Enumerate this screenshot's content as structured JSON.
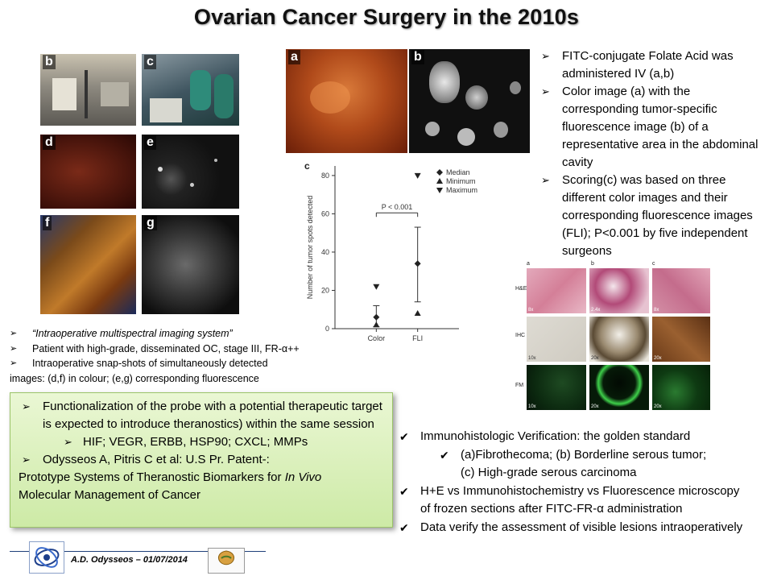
{
  "slide": {
    "title": "Ovarian Cancer Surgery in the 2010s"
  },
  "left_panel": {
    "labels": [
      "b",
      "c",
      "d",
      "e",
      "f",
      "g"
    ]
  },
  "top_images": {
    "labels": [
      "a",
      "b"
    ]
  },
  "chart_data": {
    "type": "scatter",
    "panel_label": "c",
    "categories": [
      "Color",
      "FLI"
    ],
    "ylabel": "Number of tumor spots detected",
    "ylim": [
      0,
      85
    ],
    "yticks": [
      0,
      20,
      40,
      60,
      80
    ],
    "annotation": "P < 0.001",
    "legend": [
      {
        "symbol": "diamond",
        "label": "Median"
      },
      {
        "symbol": "triangle-up",
        "label": "Minimum"
      },
      {
        "symbol": "triangle-down",
        "label": "Maximum"
      }
    ],
    "series": [
      {
        "name": "Median",
        "values": [
          6,
          34
        ]
      },
      {
        "name": "Minimum",
        "values": [
          2,
          8
        ]
      },
      {
        "name": "Maximum",
        "values": [
          22,
          80
        ]
      }
    ],
    "error_bars": [
      [
        1,
        12
      ],
      [
        14,
        53
      ]
    ]
  },
  "right_bullets": [
    "FITC-conjugate Folate Acid was administered IV (a,b)",
    "Color image (a) with the corresponding tumor-specific fluorescence image (b) of a representative area in the abdominal cavity",
    "Scoring(c) was based on three different color images and their corresponding fluorescence images (FLI); P<0.001 by five independent surgeons"
  ],
  "histology": {
    "col_labels": [
      "a",
      "b",
      "c"
    ],
    "row_labels": [
      "H&E",
      "IHC",
      "FM"
    ],
    "magnifications": [
      [
        "8x",
        "2.4x",
        "8x"
      ],
      [
        "10x",
        "20x",
        "20x"
      ],
      [
        "10x",
        "20x",
        "20x"
      ]
    ],
    "colors": {
      "he": "#d98fa6",
      "ihc_neg": "#d9d6cf",
      "ihc_pos": "#7a4a24",
      "fm": "#0d2a10"
    }
  },
  "left_bullets": [
    "“Intraoperative multispectral imaging system”",
    "Patient with high-grade, disseminated OC, stage III, FR-α++",
    "Intraoperative snap-shots of simultaneously detected"
  ],
  "left_bullets_continuation": "images: (d,f) in colour; (e,g) corresponding fluorescence",
  "green_box": {
    "item1": "Functionalization of the probe with a potential therapeutic target is expected to introduce theranostics) within the same session",
    "sub1": "HIF; VEGR, ERBB, HSP90; CXCL; MMPs",
    "item2": "Odysseos A, Pitris C et al: U.S Pr. Patent-:",
    "line3_prefix": "Prototype Systems of Theranostic Biomarkers for ",
    "line3_italic": "In Vivo",
    "line4": "Molecular Management of Cancer"
  },
  "checklist": {
    "item1": "Immunohistologic Verification: the golden standard",
    "sub1_line1": "(a)Fibrothecoma; (b) Borderline serous tumor;",
    "sub1_line2": "(c) High-grade serous carcinoma",
    "item2": "H+E vs Immunohistochemistry vs Fluorescence microscopy of frozen sections after FITC-FR-α administration",
    "item3": "Data verify the assessment of visible lesions intraoperatively"
  },
  "footer": {
    "author_date": "A.D. Odysseos – 01/07/2014"
  },
  "colors": {
    "green_box_top": "#eaf7d4",
    "green_box_bottom": "#cdeaa6",
    "footer_line": "#1f3f7a"
  }
}
